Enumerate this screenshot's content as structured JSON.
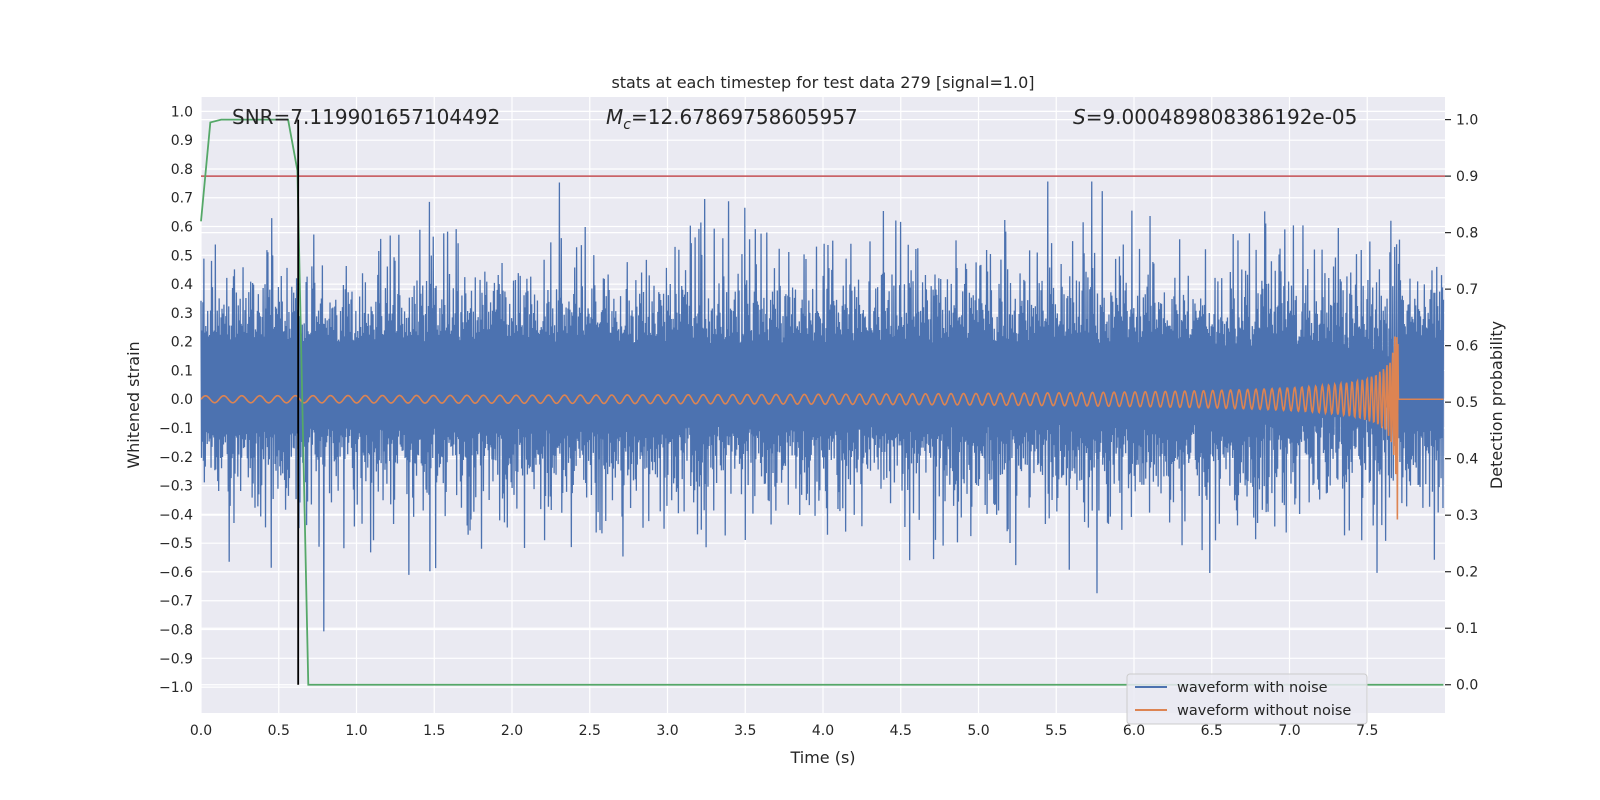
{
  "chart_data": {
    "type": "line",
    "title": "stats at each timestep for test data 279 [signal=1.0]",
    "xlabel": "Time (s)",
    "ylabel_left": "Whitened strain",
    "ylabel_right": "Detection probability",
    "xlim": [
      0.0,
      8.0
    ],
    "ylim_left": [
      -1.09,
      1.05
    ],
    "ylim_right": [
      -0.05,
      1.04
    ],
    "xticks": [
      0.0,
      0.5,
      1.0,
      1.5,
      2.0,
      2.5,
      3.0,
      3.5,
      4.0,
      4.5,
      5.0,
      5.5,
      6.0,
      6.5,
      7.0,
      7.5
    ],
    "xtick_labels": [
      "0.0",
      "0.5",
      "1.0",
      "1.5",
      "2.0",
      "2.5",
      "3.0",
      "3.5",
      "4.0",
      "4.5",
      "5.0",
      "5.5",
      "6.0",
      "6.5",
      "7.0",
      "7.5"
    ],
    "yticks_left": [
      1.0,
      0.9,
      0.8,
      0.7,
      0.6,
      0.5,
      0.4,
      0.3,
      0.2,
      0.1,
      0.0,
      -0.1,
      -0.2,
      -0.3,
      -0.4,
      -0.5,
      -0.6,
      -0.7,
      -0.8,
      -0.9,
      -1.0
    ],
    "ytick_labels_left": [
      "1.0",
      "0.9",
      "0.8",
      "0.7",
      "0.6",
      "0.5",
      "0.4",
      "0.3",
      "0.2",
      "0.1",
      "0.0",
      "−0.1",
      "−0.2",
      "−0.3",
      "−0.4",
      "−0.5",
      "−0.6",
      "−0.7",
      "−0.8",
      "−0.9",
      "−1.0"
    ],
    "yticks_right": [
      1.0,
      0.9,
      0.8,
      0.7,
      0.6,
      0.5,
      0.4,
      0.3,
      0.2,
      0.1,
      0.0
    ],
    "ytick_labels_right": [
      "1.0",
      "0.9",
      "0.8",
      "0.7",
      "0.6",
      "0.5",
      "0.4",
      "0.3",
      "0.2",
      "0.1",
      "0.0"
    ],
    "annotations": {
      "snr": "SNR=7.119901657104492",
      "mc_symbol": "M",
      "mc_subscript": "c",
      "mc_value": "=12.67869758605957",
      "s_symbol": "S",
      "s_value": "=9.000489808386192e-05"
    },
    "threshold": {
      "value": 0.9,
      "axis": "right",
      "color": "#c44e52"
    },
    "detection_time": 0.625,
    "merger_time": 7.7,
    "series": [
      {
        "name": "waveform with noise",
        "color": "#4c72b0",
        "axis": "left",
        "description": "whitened noisy strain, roughly between -0.7 and 0.9"
      },
      {
        "name": "waveform without noise",
        "color": "#dd8452",
        "axis": "left",
        "description": "chirp signal growing in amplitude until merger near 7.7 s"
      },
      {
        "name": "detection probability",
        "color": "#55a868",
        "axis": "right",
        "points": [
          [
            0.0,
            0.82
          ],
          [
            0.06,
            0.995
          ],
          [
            0.13,
            1.0
          ],
          [
            0.56,
            1.0
          ],
          [
            0.62,
            0.91
          ],
          [
            0.69,
            0.0
          ],
          [
            7.99,
            0.0
          ]
        ]
      }
    ],
    "legend": {
      "location": "lower-right",
      "entries": [
        "waveform with noise",
        "waveform without noise"
      ]
    }
  }
}
